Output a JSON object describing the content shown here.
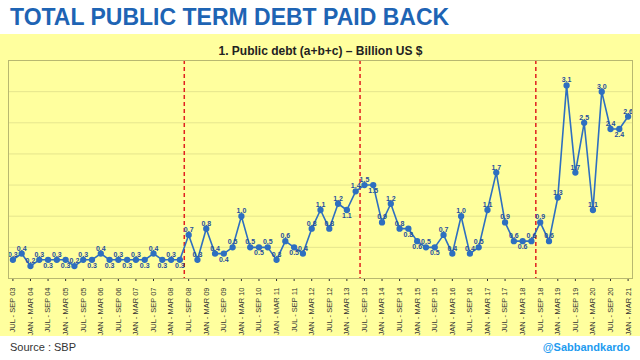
{
  "chart_data": {
    "type": "line",
    "title": "TOTAL PUBLIC TERM DEBT PAID BACK",
    "subtitle": "1. Public debt (a+b+c) – Billion US $",
    "source": "Source : SBP",
    "handle": "@Sabbandkardo",
    "categories": [
      "JUL - SEP 03",
      null,
      "JAN - MAR 04",
      null,
      "JUL - SEP 04",
      null,
      "JAN - MAR 05",
      null,
      "JUL - SEP 05",
      null,
      "JAN - MAR 06",
      null,
      "JUL - SEP 06",
      null,
      "JAN - MAR 07",
      null,
      "JUL - SEP 07",
      null,
      "JAN - MAR 08",
      null,
      "JUL - SEP 08",
      null,
      "JAN - MAR 09",
      null,
      "JUL - SEP 09",
      null,
      "JAN - MAR 10",
      null,
      "JUL - SEP 10",
      null,
      "JAN - MAR 11",
      null,
      "JUL - SEP 11",
      null,
      "JAN - MAR 12",
      null,
      "JUL - SEP 12",
      null,
      "JAN - MAR 13",
      null,
      "JUL - SEP 13",
      null,
      "JAN - MAR 14",
      null,
      "JUL - SEP 14",
      null,
      "JAN - MAR 15",
      null,
      "JUL - SEP 15",
      null,
      "JAN - MAR 16",
      null,
      "JUL - SEP 16",
      null,
      "JAN - MAR 17",
      null,
      "JUL - SEP 17",
      null,
      "JAN - MAR 18",
      null,
      "JUL - SEP 18",
      null,
      "JAN - MAR 19",
      null,
      "JUL - SEP 19",
      null,
      "JAN - MAR 20",
      null,
      "JUL - SEP 20",
      null,
      "JAN - MAR 21"
    ],
    "values": [
      0.3,
      0.4,
      0.2,
      0.3,
      0.3,
      0.3,
      0.3,
      0.2,
      0.3,
      0.3,
      0.4,
      0.3,
      0.3,
      0.3,
      0.3,
      0.3,
      0.4,
      0.3,
      0.3,
      0.3,
      0.7,
      0.3,
      0.8,
      0.4,
      0.4,
      0.5,
      1.0,
      0.5,
      0.5,
      0.5,
      0.3,
      0.6,
      0.5,
      0.4,
      0.8,
      1.1,
      0.8,
      1.2,
      1.1,
      1.4,
      1.5,
      1.5,
      0.9,
      1.2,
      0.8,
      0.8,
      0.6,
      0.5,
      0.5,
      0.7,
      0.4,
      1.0,
      0.4,
      0.5,
      1.1,
      1.7,
      0.9,
      0.6,
      0.6,
      0.6,
      0.9,
      0.6,
      1.3,
      3.1,
      1.7,
      2.5,
      1.1,
      3.0,
      2.4,
      2.4,
      2.6
    ],
    "value_labels": [
      "0.3",
      "0.4",
      "0.2",
      "0.3",
      "0.3",
      "0.3",
      "0.3",
      "0.2",
      "0.3",
      "0.3",
      "0.4",
      "0.3",
      "0.3",
      "0.3",
      "0.3",
      "0.3",
      "0.4",
      "0.3",
      "0.3",
      "0.3",
      "0.7",
      "0.3",
      "0.8",
      "0.4",
      "0.4",
      "0.5",
      "1.0",
      "0.5",
      "0.5",
      "0.5",
      "0.3",
      "0.6",
      "0.5",
      "0.4",
      "0.8",
      "1.1",
      "0.8",
      "1.2",
      "1.1",
      "1.4",
      "1.5",
      "1.5",
      "0.9",
      "1.2",
      "0.8",
      "0.8",
      "0.6",
      "0.5",
      "0.5",
      "0.7",
      "0.4",
      "1.0",
      "0.4",
      "0.5",
      "1.1",
      "1.7",
      "0.9",
      "0.6",
      "0.6",
      "0.6",
      "0.9",
      "0.6",
      "1.3",
      "3.1",
      "1.7",
      "2.5",
      "1.1",
      "3.0",
      "2.4",
      "2.4",
      "2.6"
    ],
    "color": "#2e6fc0",
    "marker": "circle",
    "ylim": [
      0,
      3.5
    ],
    "yticks": [
      0,
      0.5,
      1,
      1.5,
      2,
      2.5,
      3,
      3.5
    ],
    "grid": true,
    "tick_labels": "x",
    "data_labels": true,
    "dividers": [
      "JUL - SEP 08",
      "JUL - SEP 13",
      "JUL - SEP 18"
    ]
  }
}
